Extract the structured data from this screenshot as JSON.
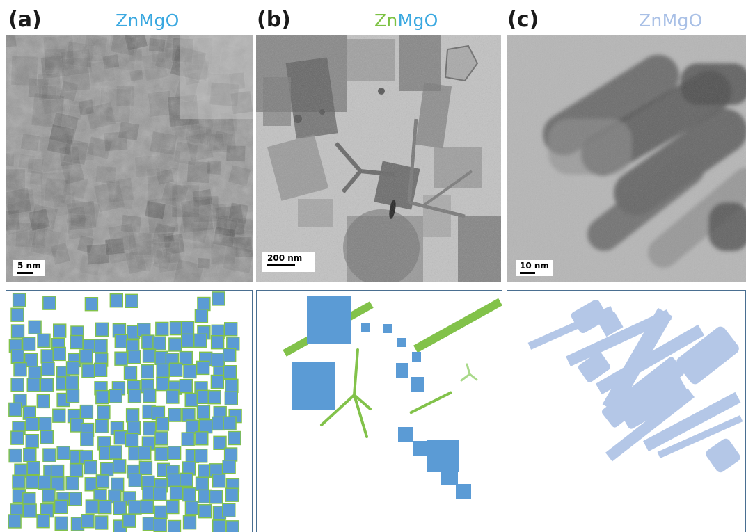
{
  "panels": [
    {
      "letter": "(a)",
      "title_parts": [
        {
          "text": "ZnMgO",
          "color": "#3aa8e0"
        }
      ],
      "scale_bar": "5 nm"
    },
    {
      "letter": "(b)",
      "title_parts": [
        {
          "text": "Zn",
          "color": "#7cc242"
        },
        {
          "text": "MgO",
          "color": "#3aa8e0"
        }
      ],
      "scale_bar": "200 nm"
    },
    {
      "letter": "(c)",
      "title_parts": [
        {
          "text": "ZnMgO",
          "color": "#a9c0e6"
        }
      ],
      "scale_bar": "10 nm"
    }
  ],
  "colors": {
    "mgo_blue": "#5b9bd5",
    "zn_green": "#82c24a",
    "zn_green_light": "#a9d98a",
    "znmgo_light": "#b4c7e7",
    "frame": "#4a6f91"
  }
}
